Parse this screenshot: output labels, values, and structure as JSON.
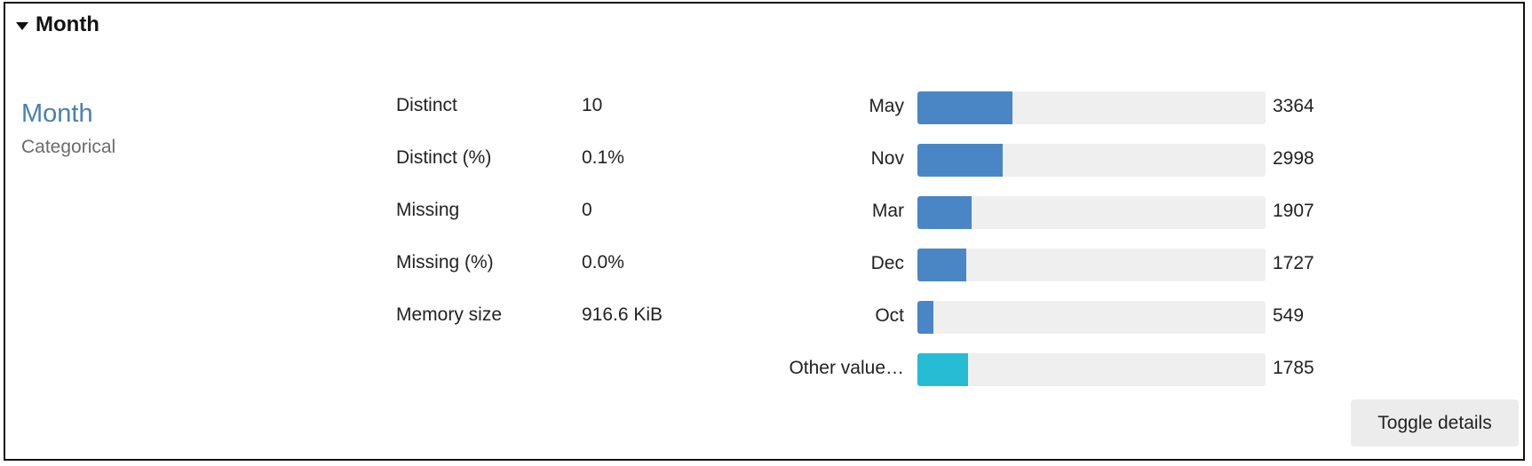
{
  "section": {
    "title": "Month"
  },
  "variable": {
    "name": "Month",
    "type": "Categorical"
  },
  "stats": [
    {
      "label": "Distinct",
      "value": "10"
    },
    {
      "label": "Distinct (%)",
      "value": "0.1%"
    },
    {
      "label": "Missing",
      "value": "0"
    },
    {
      "label": "Missing (%)",
      "value": "0.0%"
    },
    {
      "label": "Memory size",
      "value": "916.6 KiB"
    }
  ],
  "chart_data": {
    "type": "bar",
    "orientation": "horizontal",
    "categories": [
      "May",
      "Nov",
      "Mar",
      "Dec",
      "Oct",
      "Other value…"
    ],
    "values": [
      3364,
      2998,
      1907,
      1727,
      549,
      1785
    ],
    "xlim": [
      0,
      12294
    ],
    "colors": {
      "bar": "#4a86c5",
      "other": "#26bcd4",
      "track": "#efefef"
    }
  },
  "actions": {
    "toggle_label": "Toggle details"
  }
}
